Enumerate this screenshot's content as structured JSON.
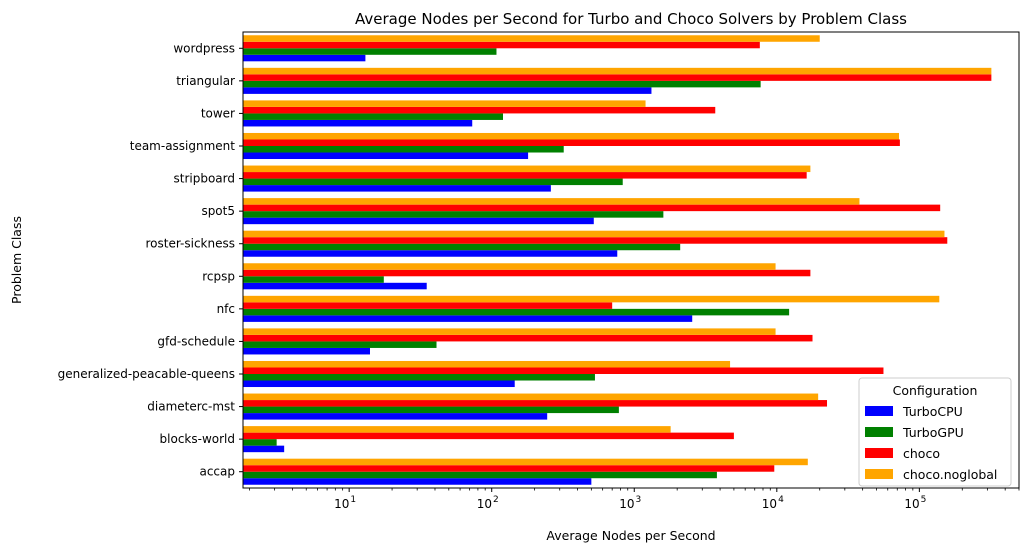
{
  "chart_data": {
    "type": "bar",
    "orientation": "horizontal",
    "title": "Average Nodes per Second for Turbo and Choco Solvers by Problem Class",
    "xlabel": "Average Nodes per Second",
    "ylabel": "Problem Class",
    "xscale": "log",
    "xlim": [
      1.8,
      500000
    ],
    "x_ticks": [
      {
        "value": 10,
        "base": "10",
        "exp": "1"
      },
      {
        "value": 100,
        "base": "10",
        "exp": "2"
      },
      {
        "value": 1000,
        "base": "10",
        "exp": "3"
      },
      {
        "value": 10000,
        "base": "10",
        "exp": "4"
      },
      {
        "value": 100000,
        "base": "10",
        "exp": "5"
      }
    ],
    "categories": [
      "accap",
      "blocks-world",
      "diameterc-mst",
      "generalized-peacable-queens",
      "gfd-schedule",
      "nfc",
      "rcpsp",
      "roster-sickness",
      "spot5",
      "stripboard",
      "team-assignment",
      "tower",
      "triangular",
      "wordpress"
    ],
    "series": [
      {
        "name": "TurboCPU",
        "color": "#0000ff",
        "values": [
          500,
          3.5,
          245,
          145,
          14,
          2550,
          35,
          760,
          520,
          260,
          180,
          73,
          1320,
          13
        ]
      },
      {
        "name": "TurboGPU",
        "color": "#008000",
        "values": [
          3800,
          3.1,
          780,
          530,
          41,
          12200,
          17.5,
          2100,
          1600,
          830,
          320,
          120,
          7700,
          108
        ]
      },
      {
        "name": "choco",
        "color": "#ff0000",
        "values": [
          9600,
          5000,
          22500,
          56000,
          17800,
          700,
          17200,
          157000,
          140000,
          16200,
          73000,
          3700,
          320000,
          7600
        ]
      },
      {
        "name": "choco.noglobal",
        "color": "#ffa500",
        "values": [
          16500,
          1800,
          19500,
          4700,
          9800,
          138000,
          9800,
          150000,
          38000,
          17200,
          72000,
          1200,
          320000,
          20000
        ]
      }
    ],
    "legend": {
      "title": "Configuration",
      "position": "lower right"
    },
    "grid": false
  }
}
